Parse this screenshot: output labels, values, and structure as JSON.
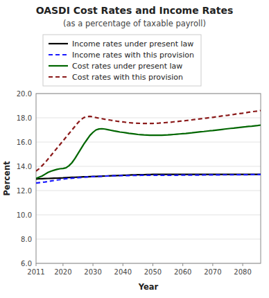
{
  "chart_data": {
    "type": "line",
    "title": "OASDI Cost Rates and Income Rates",
    "subtitle": "(as a percentage of taxable payroll)",
    "xlabel": "Year",
    "ylabel": "Percent",
    "x": [
      2011,
      2012,
      2013,
      2014,
      2015,
      2016,
      2017,
      2018,
      2019,
      2020,
      2021,
      2022,
      2023,
      2024,
      2025,
      2026,
      2027,
      2028,
      2029,
      2030,
      2031,
      2032,
      2033,
      2034,
      2035,
      2036,
      2037,
      2038,
      2039,
      2040,
      2041,
      2042,
      2043,
      2044,
      2045,
      2046,
      2047,
      2048,
      2049,
      2050,
      2051,
      2052,
      2053,
      2054,
      2055,
      2056,
      2057,
      2058,
      2059,
      2060,
      2061,
      2062,
      2063,
      2064,
      2065,
      2066,
      2067,
      2068,
      2069,
      2070,
      2071,
      2072,
      2073,
      2074,
      2075,
      2076,
      2077,
      2078,
      2079,
      2080,
      2081,
      2082,
      2083,
      2084,
      2085,
      2086
    ],
    "series": [
      {
        "name": "Income rates under present law",
        "color": "#000000",
        "line_style": "solid",
        "values": [
          12.95,
          12.97,
          12.98,
          12.99,
          13.0,
          13.01,
          13.02,
          13.03,
          13.04,
          13.05,
          13.07,
          13.08,
          13.09,
          13.1,
          13.11,
          13.12,
          13.13,
          13.14,
          13.15,
          13.16,
          13.17,
          13.18,
          13.19,
          13.2,
          13.21,
          13.22,
          13.23,
          13.24,
          13.25,
          13.26,
          13.27,
          13.28,
          13.29,
          13.3,
          13.31,
          13.31,
          13.31,
          13.32,
          13.32,
          13.33,
          13.33,
          13.33,
          13.33,
          13.33,
          13.33,
          13.33,
          13.33,
          13.33,
          13.33,
          13.33,
          13.33,
          13.33,
          13.33,
          13.33,
          13.33,
          13.33,
          13.33,
          13.33,
          13.33,
          13.33,
          13.33,
          13.33,
          13.33,
          13.33,
          13.33,
          13.33,
          13.33,
          13.33,
          13.33,
          13.33,
          13.33,
          13.33,
          13.33,
          13.33,
          13.33,
          13.33
        ]
      },
      {
        "name": "Income rates with this provision",
        "color": "#1a1aff",
        "line_style": "dashed",
        "values": [
          12.62,
          12.65,
          12.68,
          12.71,
          12.75,
          12.79,
          12.83,
          12.87,
          12.9,
          12.95,
          12.98,
          13.0,
          13.02,
          13.04,
          13.06,
          13.08,
          13.1,
          13.12,
          13.14,
          13.15,
          13.16,
          13.17,
          13.18,
          13.19,
          13.2,
          13.21,
          13.22,
          13.22,
          13.23,
          13.23,
          13.24,
          13.24,
          13.25,
          13.25,
          13.25,
          13.26,
          13.26,
          13.26,
          13.26,
          13.26,
          13.27,
          13.27,
          13.27,
          13.27,
          13.27,
          13.27,
          13.27,
          13.27,
          13.28,
          13.28,
          13.28,
          13.28,
          13.28,
          13.28,
          13.28,
          13.28,
          13.29,
          13.29,
          13.29,
          13.29,
          13.29,
          13.29,
          13.3,
          13.3,
          13.3,
          13.3,
          13.3,
          13.31,
          13.31,
          13.31,
          13.31,
          13.31,
          13.32,
          13.32,
          13.32,
          13.32
        ]
      },
      {
        "name": "Cost rates under present law",
        "color": "#006600",
        "line_style": "solid",
        "values": [
          13.0,
          13.1,
          13.2,
          13.35,
          13.5,
          13.6,
          13.68,
          13.75,
          13.8,
          13.82,
          13.88,
          14.05,
          14.3,
          14.65,
          15.05,
          15.45,
          15.85,
          16.2,
          16.55,
          16.8,
          17.0,
          17.08,
          17.1,
          17.07,
          17.02,
          16.97,
          16.92,
          16.88,
          16.83,
          16.8,
          16.76,
          16.72,
          16.69,
          16.66,
          16.63,
          16.61,
          16.59,
          16.58,
          16.57,
          16.56,
          16.56,
          16.56,
          16.57,
          16.58,
          16.59,
          16.61,
          16.63,
          16.65,
          16.67,
          16.69,
          16.71,
          16.74,
          16.76,
          16.79,
          16.82,
          16.85,
          16.87,
          16.9,
          16.93,
          16.95,
          16.98,
          17.01,
          17.04,
          17.07,
          17.1,
          17.13,
          17.15,
          17.18,
          17.21,
          17.24,
          17.26,
          17.29,
          17.31,
          17.34,
          17.36,
          17.4
        ]
      },
      {
        "name": "Cost rates with this provision",
        "color": "#8b1a1a",
        "line_style": "dashed",
        "values": [
          13.6,
          13.8,
          14.05,
          14.3,
          14.6,
          14.9,
          15.2,
          15.5,
          15.8,
          16.1,
          16.4,
          16.7,
          17.0,
          17.3,
          17.6,
          17.85,
          18.02,
          18.1,
          18.12,
          18.08,
          18.02,
          17.97,
          17.93,
          17.88,
          17.84,
          17.8,
          17.76,
          17.72,
          17.69,
          17.66,
          17.63,
          17.6,
          17.58,
          17.56,
          17.55,
          17.54,
          17.53,
          17.53,
          17.53,
          17.54,
          17.55,
          17.56,
          17.58,
          17.6,
          17.62,
          17.64,
          17.67,
          17.69,
          17.72,
          17.74,
          17.77,
          17.8,
          17.83,
          17.86,
          17.89,
          17.92,
          17.95,
          17.98,
          18.01,
          18.04,
          18.08,
          18.11,
          18.15,
          18.18,
          18.21,
          18.25,
          18.28,
          18.32,
          18.35,
          18.38,
          18.42,
          18.46,
          18.5,
          18.53,
          18.56,
          18.6
        ]
      }
    ],
    "xlim": [
      2011,
      2086
    ],
    "ylim": [
      6.0,
      20.0
    ],
    "xticks": [
      2011,
      2020,
      2030,
      2040,
      2050,
      2060,
      2070,
      2080
    ],
    "yticks": [
      {
        "value": 6.0,
        "label": "6.0"
      },
      {
        "value": 8.0,
        "label": "8.0"
      },
      {
        "value": 10.0,
        "label": "10.0"
      },
      {
        "value": 12.0,
        "label": "12.0"
      },
      {
        "value": 14.0,
        "label": "14.0"
      },
      {
        "value": 16.0,
        "label": "16.0"
      },
      {
        "value": 18.0,
        "label": "18.0"
      },
      {
        "value": 20.0,
        "label": "20.0"
      }
    ],
    "grid": true,
    "legend": "upper left"
  }
}
